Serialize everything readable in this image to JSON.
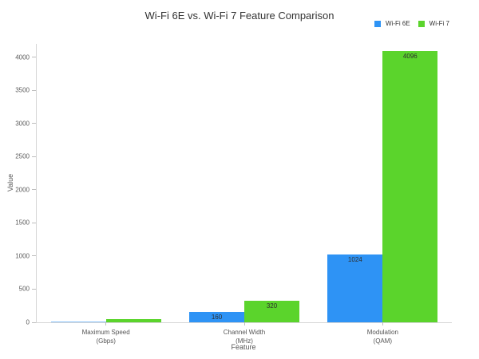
{
  "chart_data": {
    "type": "bar",
    "title": "Wi-Fi 6E vs. Wi-Fi 7 Feature Comparison",
    "xlabel": "Feature",
    "ylabel": "Value",
    "categories": [
      {
        "label": "Maximum Speed",
        "sublabel": "(Gbps)"
      },
      {
        "label": "Channel Width",
        "sublabel": "(MHz)"
      },
      {
        "label": "Modulation",
        "sublabel": "(QAM)"
      }
    ],
    "series": [
      {
        "name": "Wi-Fi 6E",
        "color": "#2E93F5",
        "values": [
          9.6,
          160,
          1024
        ],
        "bar_labels": [
          "",
          "160",
          "1024"
        ]
      },
      {
        "name": "Wi-Fi 7",
        "color": "#5BD42C",
        "values": [
          46,
          320,
          4096
        ],
        "bar_labels": [
          "",
          "320",
          "4096"
        ]
      }
    ],
    "ylim": [
      0,
      4200
    ],
    "yticks": [
      0,
      500,
      1000,
      1500,
      2000,
      2500,
      3000,
      3500,
      4000
    ],
    "grid": false,
    "legend_position": "top-right",
    "axis_line_color": "#d6d6d6"
  }
}
